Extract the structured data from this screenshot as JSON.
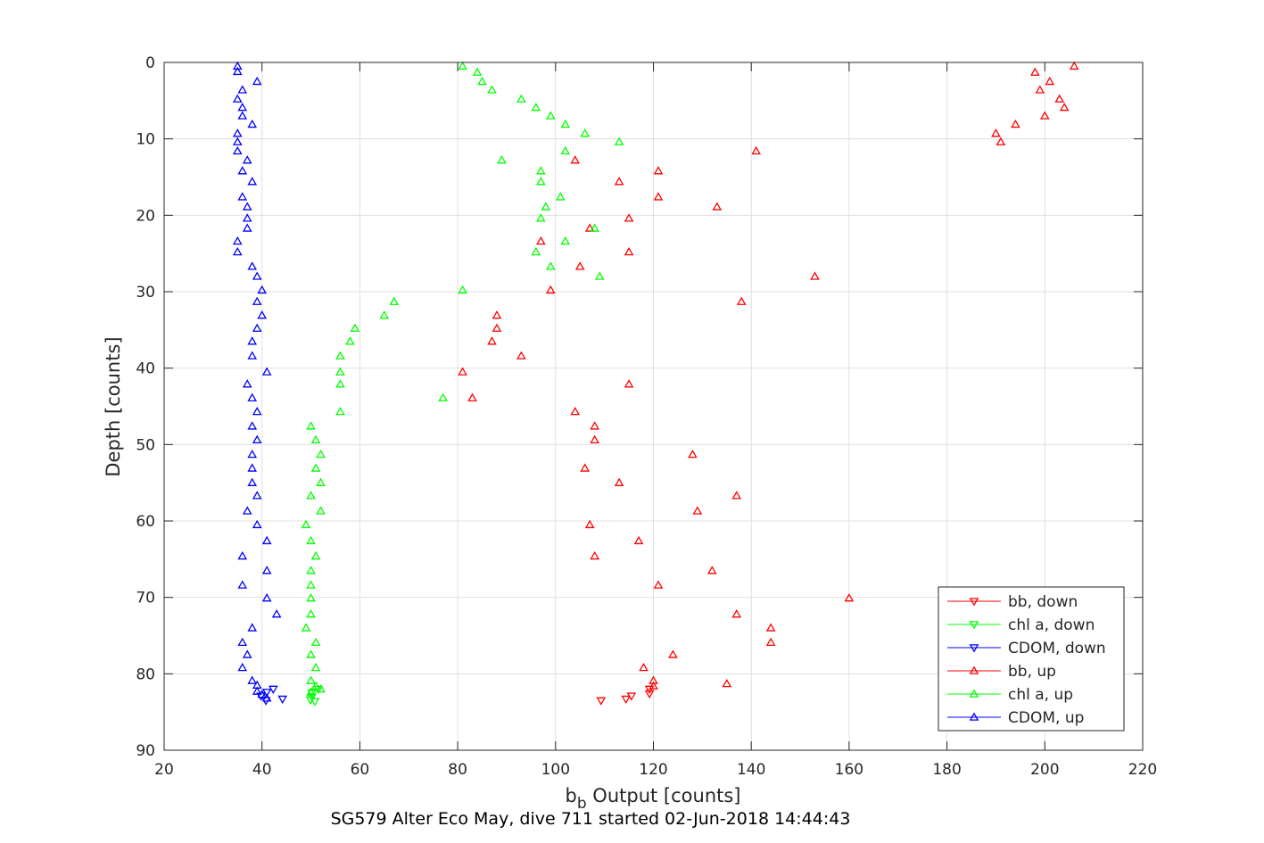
{
  "caption": "SG579 Alter Eco May, dive 711 started 02-Jun-2018 14:44:43",
  "chart_data": {
    "type": "scatter",
    "xlabel_main": "b",
    "xlabel_sub": "b",
    "xlabel_rest": " Output [counts]",
    "ylabel": "Depth [counts]",
    "xlim": [
      20,
      220
    ],
    "ylim": [
      0,
      90
    ],
    "y_reversed": true,
    "grid": true,
    "legend_position": "bottom-right",
    "x_ticks": [
      "20",
      "40",
      "60",
      "80",
      "100",
      "120",
      "140",
      "160",
      "180",
      "200",
      "220"
    ],
    "y_ticks": [
      "0",
      "10",
      "20",
      "30",
      "40",
      "50",
      "60",
      "70",
      "80",
      "90"
    ],
    "series": [
      {
        "name": "bb, down",
        "color": "#ff0000",
        "marker": "triangle-down",
        "points": [
          [
            109.3,
            83.5
          ],
          [
            114.4,
            83.3
          ],
          [
            115.5,
            82.9
          ],
          [
            119.2,
            82.6
          ],
          [
            119.2,
            82.0
          ]
        ]
      },
      {
        "name": "chl a, down",
        "color": "#00ff00",
        "marker": "triangle-down",
        "points": [
          [
            49.9,
            83.4
          ],
          [
            50.2,
            83.0
          ],
          [
            50.2,
            82.5
          ],
          [
            51.5,
            82.0
          ],
          [
            50.8,
            83.6
          ]
        ]
      },
      {
        "name": "CDOM, down",
        "color": "#0000ff",
        "marker": "triangle-down",
        "points": [
          [
            40.8,
            83.5
          ],
          [
            44.2,
            83.3
          ],
          [
            39.8,
            82.9
          ],
          [
            41.0,
            82.4
          ],
          [
            42.3,
            82.0
          ]
        ]
      },
      {
        "name": "bb, up",
        "color": "#ff0000",
        "marker": "triangle-up",
        "points": [
          [
            206,
            0.5
          ],
          [
            198,
            1.3
          ],
          [
            201,
            2.5
          ],
          [
            199,
            3.6
          ],
          [
            203,
            4.8
          ],
          [
            204,
            5.9
          ],
          [
            200,
            7.0
          ],
          [
            194,
            8.1
          ],
          [
            190,
            9.3
          ],
          [
            191,
            10.4
          ],
          [
            141,
            11.6
          ],
          [
            104,
            12.8
          ],
          [
            121,
            14.2
          ],
          [
            113,
            15.6
          ],
          [
            121,
            17.6
          ],
          [
            133,
            18.9
          ],
          [
            115,
            20.4
          ],
          [
            107,
            21.7
          ],
          [
            97,
            23.4
          ],
          [
            115,
            24.8
          ],
          [
            105,
            26.7
          ],
          [
            153,
            28.0
          ],
          [
            99,
            29.8
          ],
          [
            138,
            31.3
          ],
          [
            88,
            33.1
          ],
          [
            88,
            34.8
          ],
          [
            87,
            36.5
          ],
          [
            93,
            38.4
          ],
          [
            81,
            40.5
          ],
          [
            115,
            42.1
          ],
          [
            83,
            43.9
          ],
          [
            104,
            45.7
          ],
          [
            108,
            47.6
          ],
          [
            108,
            49.4
          ],
          [
            128,
            51.3
          ],
          [
            106,
            53.1
          ],
          [
            113,
            55.0
          ],
          [
            137,
            56.7
          ],
          [
            129,
            58.7
          ],
          [
            107,
            60.5
          ],
          [
            117,
            62.6
          ],
          [
            108,
            64.6
          ],
          [
            132,
            66.5
          ],
          [
            121,
            68.4
          ],
          [
            160,
            70.1
          ],
          [
            137,
            72.2
          ],
          [
            144,
            74.0
          ],
          [
            144,
            75.9
          ],
          [
            124,
            77.5
          ],
          [
            118,
            79.2
          ],
          [
            120,
            80.9
          ],
          [
            120,
            81.6
          ],
          [
            135,
            81.3
          ]
        ]
      },
      {
        "name": "chl a, up",
        "color": "#00ff00",
        "marker": "triangle-up",
        "points": [
          [
            81,
            0.5
          ],
          [
            84,
            1.3
          ],
          [
            85,
            2.5
          ],
          [
            87,
            3.6
          ],
          [
            93,
            4.8
          ],
          [
            96,
            5.9
          ],
          [
            99,
            7.0
          ],
          [
            102,
            8.1
          ],
          [
            106,
            9.3
          ],
          [
            113,
            10.4
          ],
          [
            102,
            11.6
          ],
          [
            89,
            12.8
          ],
          [
            97,
            14.2
          ],
          [
            97,
            15.6
          ],
          [
            101,
            17.6
          ],
          [
            98,
            18.9
          ],
          [
            97,
            20.4
          ],
          [
            108,
            21.7
          ],
          [
            102,
            23.4
          ],
          [
            96,
            24.8
          ],
          [
            99,
            26.7
          ],
          [
            109,
            28.0
          ],
          [
            81,
            29.8
          ],
          [
            67,
            31.3
          ],
          [
            65,
            33.1
          ],
          [
            59,
            34.8
          ],
          [
            58,
            36.5
          ],
          [
            56,
            38.4
          ],
          [
            56,
            40.5
          ],
          [
            56,
            42.1
          ],
          [
            77,
            43.9
          ],
          [
            56,
            45.7
          ],
          [
            50,
            47.6
          ],
          [
            51,
            49.4
          ],
          [
            52,
            51.3
          ],
          [
            51,
            53.1
          ],
          [
            52,
            55.0
          ],
          [
            50,
            56.7
          ],
          [
            52,
            58.7
          ],
          [
            49,
            60.5
          ],
          [
            50,
            62.6
          ],
          [
            51,
            64.6
          ],
          [
            50,
            66.5
          ],
          [
            50,
            68.4
          ],
          [
            50,
            70.1
          ],
          [
            50,
            72.2
          ],
          [
            49,
            74.0
          ],
          [
            51,
            75.9
          ],
          [
            50,
            77.5
          ],
          [
            51,
            79.2
          ],
          [
            50,
            80.9
          ],
          [
            50,
            82.4
          ],
          [
            51,
            81.6
          ],
          [
            52,
            82.0
          ]
        ]
      },
      {
        "name": "CDOM, up",
        "color": "#0000ff",
        "marker": "triangle-up",
        "points": [
          [
            35,
            0.5
          ],
          [
            35,
            1.2
          ],
          [
            39,
            2.5
          ],
          [
            36,
            3.6
          ],
          [
            35,
            4.8
          ],
          [
            36,
            5.9
          ],
          [
            36,
            7.0
          ],
          [
            38,
            8.1
          ],
          [
            35,
            9.3
          ],
          [
            35,
            10.4
          ],
          [
            35,
            11.6
          ],
          [
            37,
            12.8
          ],
          [
            36,
            14.2
          ],
          [
            38,
            15.6
          ],
          [
            36,
            17.6
          ],
          [
            37,
            18.9
          ],
          [
            37,
            20.4
          ],
          [
            37,
            21.7
          ],
          [
            35,
            23.4
          ],
          [
            35,
            24.8
          ],
          [
            38,
            26.7
          ],
          [
            39,
            28.0
          ],
          [
            40,
            29.8
          ],
          [
            39,
            31.3
          ],
          [
            40,
            33.1
          ],
          [
            39,
            34.8
          ],
          [
            38,
            36.5
          ],
          [
            38,
            38.4
          ],
          [
            41,
            40.5
          ],
          [
            37,
            42.1
          ],
          [
            38,
            43.9
          ],
          [
            39,
            45.7
          ],
          [
            38,
            47.6
          ],
          [
            39,
            49.4
          ],
          [
            38,
            51.3
          ],
          [
            38,
            53.1
          ],
          [
            38,
            55.0
          ],
          [
            39,
            56.7
          ],
          [
            37,
            58.7
          ],
          [
            39,
            60.5
          ],
          [
            41,
            62.6
          ],
          [
            36,
            64.6
          ],
          [
            41,
            66.5
          ],
          [
            36,
            68.4
          ],
          [
            41,
            70.1
          ],
          [
            43,
            72.2
          ],
          [
            38,
            74.0
          ],
          [
            36,
            75.9
          ],
          [
            37,
            77.5
          ],
          [
            36,
            79.2
          ],
          [
            38,
            80.9
          ],
          [
            39,
            81.5
          ],
          [
            39,
            82.3
          ],
          [
            40,
            82.7
          ],
          [
            41,
            83.2
          ]
        ]
      }
    ]
  }
}
